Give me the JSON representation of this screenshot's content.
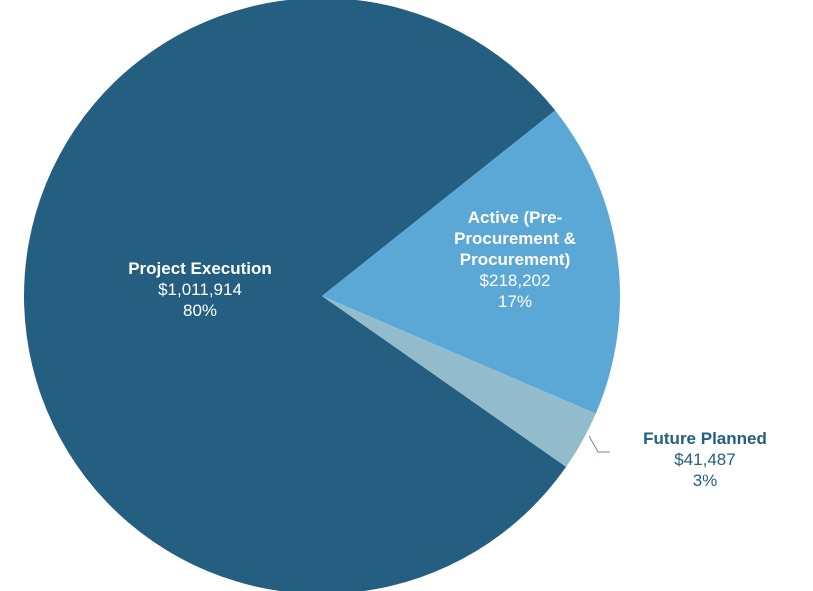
{
  "chart_data": {
    "type": "pie",
    "categories": [
      "Project Execution",
      "Active (Pre-Procurement & Procurement)",
      "Future Planned"
    ],
    "values": [
      1011914,
      218202,
      41487
    ],
    "value_labels": [
      "$1,011,914",
      "$218,202",
      "$41,487"
    ],
    "percent_labels": [
      "80%",
      "17%",
      "3%"
    ],
    "colors": [
      "#245e80",
      "#5ba7d6",
      "#92bccc"
    ]
  }
}
